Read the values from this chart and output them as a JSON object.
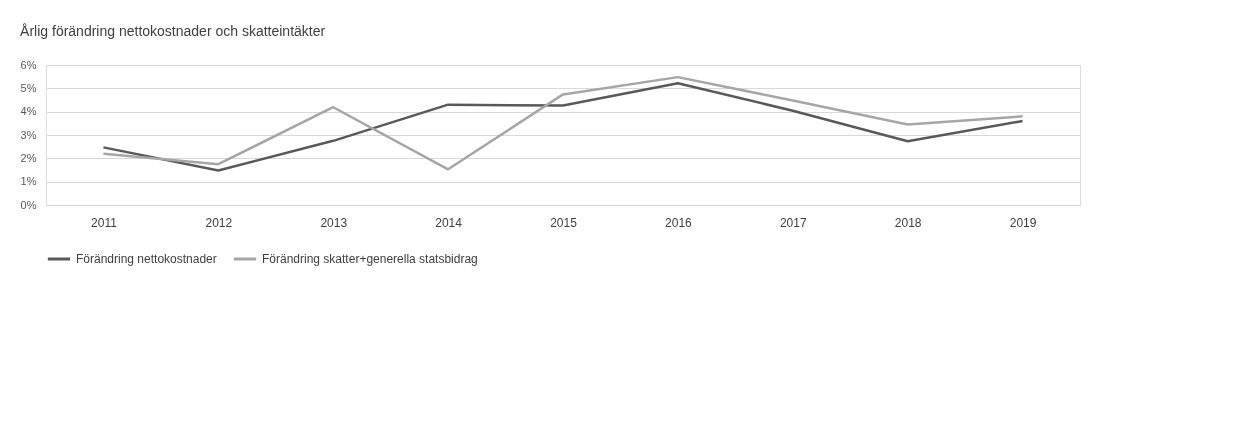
{
  "chart_data": {
    "type": "line",
    "title": "Årlig förändring nettokostnader och skatteintäkter",
    "categories": [
      "2011",
      "2012",
      "2013",
      "2014",
      "2015",
      "2016",
      "2017",
      "2018",
      "2019"
    ],
    "series": [
      {
        "name": "Förändring nettokostnader",
        "color": "#595959",
        "values": [
          2.47,
          1.48,
          2.75,
          4.3,
          4.26,
          5.22,
          4.04,
          2.73,
          3.6
        ]
      },
      {
        "name": "Förändring skatter+generella statsbidrag",
        "color": "#a6a6a6",
        "values": [
          2.2,
          1.75,
          4.19,
          1.53,
          4.74,
          5.48,
          4.48,
          3.45,
          3.8
        ]
      }
    ],
    "ylim": [
      0,
      6
    ],
    "yticks": [
      {
        "value": 0,
        "label": "0%"
      },
      {
        "value": 1,
        "label": "1%"
      },
      {
        "value": 2,
        "label": "2%"
      },
      {
        "value": 3,
        "label": "3%"
      },
      {
        "value": 4,
        "label": "4%"
      },
      {
        "value": 5,
        "label": "5%"
      },
      {
        "value": 6,
        "label": "6%"
      }
    ],
    "grid": "y",
    "legend": "bottom",
    "marker": "none",
    "line_style": "solid"
  }
}
